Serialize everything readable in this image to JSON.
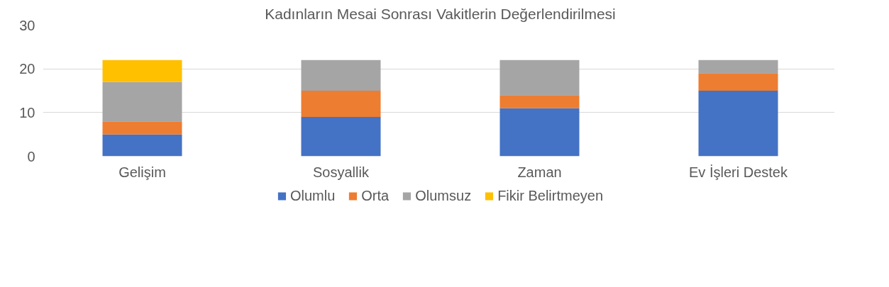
{
  "chart_data": {
    "type": "bar",
    "stacked": true,
    "title": "Kadınların Mesai Sonrası Vakitlerin Değerlendirilmesi",
    "categories": [
      "Gelişim",
      "Sosyallik",
      "Zaman",
      "Ev İşleri Destek"
    ],
    "series": [
      {
        "name": "Olumlu",
        "color": "#4472c4",
        "values": [
          5,
          9,
          11,
          15
        ]
      },
      {
        "name": "Orta",
        "color": "#ed7d31",
        "values": [
          3,
          6,
          3,
          4
        ]
      },
      {
        "name": "Olumsuz",
        "color": "#a5a5a5",
        "values": [
          9,
          7,
          8,
          3
        ]
      },
      {
        "name": "Fikir Belirtmeyen",
        "color": "#ffc000",
        "values": [
          5,
          null,
          null,
          null
        ]
      }
    ],
    "ylim": [
      0,
      30
    ],
    "yticks": [
      0,
      10,
      20,
      30
    ],
    "grid": "y",
    "legend": "bottom"
  }
}
